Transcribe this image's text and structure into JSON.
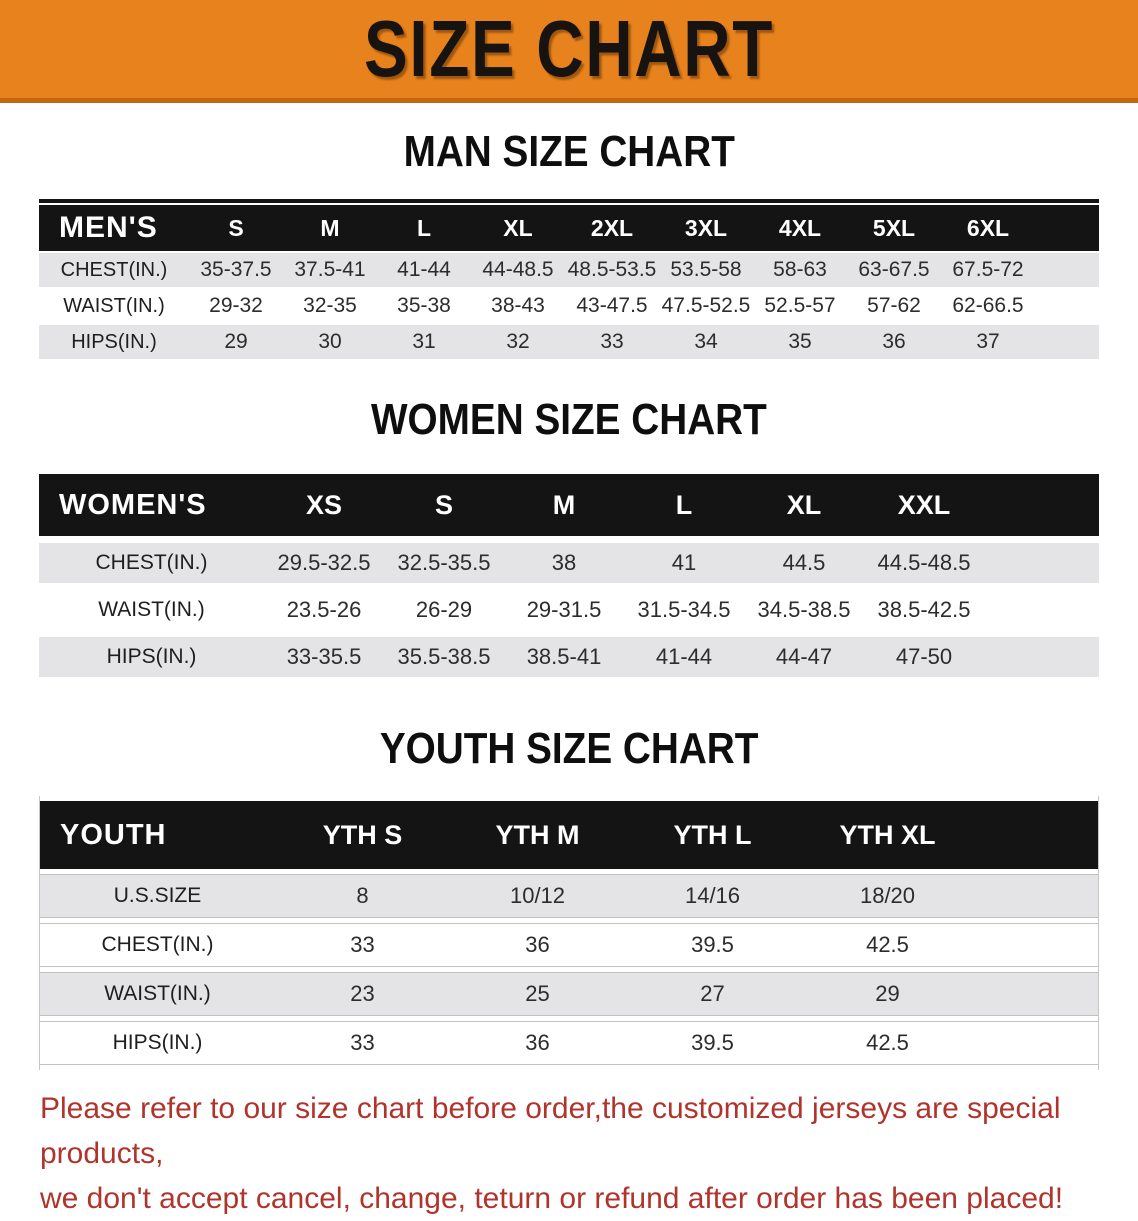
{
  "banner": {
    "title": "SIZE CHART"
  },
  "sections": [
    {
      "heading": "MAN SIZE CHART",
      "corner": "MEN'S",
      "columns": [
        "S",
        "M",
        "L",
        "XL",
        "2XL",
        "3XL",
        "4XL",
        "5XL",
        "6XL"
      ],
      "rows": [
        {
          "label": "CHEST(IN.)",
          "values": [
            "35-37.5",
            "37.5-41",
            "41-44",
            "44-48.5",
            "48.5-53.5",
            "53.5-58",
            "58-63",
            "63-67.5",
            "67.5-72"
          ]
        },
        {
          "label": "WAIST(IN.)",
          "values": [
            "29-32",
            "32-35",
            "35-38",
            "38-43",
            "43-47.5",
            "47.5-52.5",
            "52.5-57",
            "57-62",
            "62-66.5"
          ]
        },
        {
          "label": "HIPS(IN.)",
          "values": [
            "29",
            "30",
            "31",
            "32",
            "33",
            "34",
            "35",
            "36",
            "37"
          ]
        }
      ]
    },
    {
      "heading": "WOMEN SIZE CHART",
      "corner": "WOMEN'S",
      "columns": [
        "XS",
        "S",
        "M",
        "L",
        "XL",
        "XXL"
      ],
      "rows": [
        {
          "label": "CHEST(IN.)",
          "values": [
            "29.5-32.5",
            "32.5-35.5",
            "38",
            "41",
            "44.5",
            "44.5-48.5"
          ]
        },
        {
          "label": "WAIST(IN.)",
          "values": [
            "23.5-26",
            "26-29",
            "29-31.5",
            "31.5-34.5",
            "34.5-38.5",
            "38.5-42.5"
          ]
        },
        {
          "label": "HIPS(IN.)",
          "values": [
            "33-35.5",
            "35.5-38.5",
            "38.5-41",
            "41-44",
            "44-47",
            "47-50"
          ]
        }
      ]
    },
    {
      "heading": "YOUTH SIZE CHART",
      "corner": "YOUTH",
      "columns": [
        "YTH S",
        "YTH M",
        "YTH L",
        "YTH XL"
      ],
      "rows": [
        {
          "label": "U.S.SIZE",
          "values": [
            "8",
            "10/12",
            "14/16",
            "18/20"
          ]
        },
        {
          "label": "CHEST(IN.)",
          "values": [
            "33",
            "36",
            "39.5",
            "42.5"
          ]
        },
        {
          "label": "WAIST(IN.)",
          "values": [
            "23",
            "25",
            "27",
            "29"
          ]
        },
        {
          "label": "HIPS(IN.)",
          "values": [
            "33",
            "36",
            "39.5",
            "42.5"
          ]
        }
      ]
    }
  ],
  "footnote": {
    "line1": "Please refer to our size chart before order,the customized jerseys are special products,",
    "line2": "we don't accept cancel, change, teturn or refund after order has been placed!"
  },
  "colors": {
    "banner_orange": "#E8821C",
    "banner_edge": "#C2690F",
    "header_black": "#141414",
    "stripe_gray": "#E4E4E6",
    "note_red": "#B0342C"
  }
}
